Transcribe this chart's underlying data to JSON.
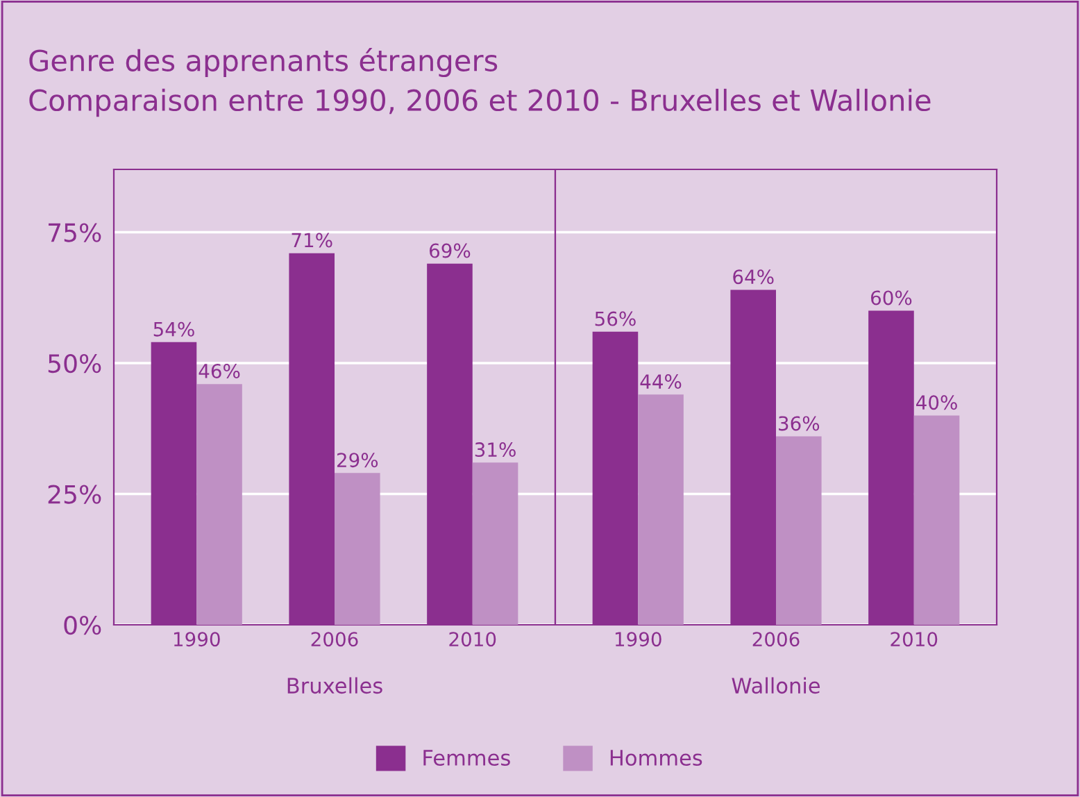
{
  "chart_data": [
    {
      "type": "bar",
      "title": "Genre des apprenants étrangers",
      "subtitle": "Comparaison entre 1990, 2006 et 2010 - Bruxelles et Wallonie",
      "xlabel": "Bruxelles",
      "categories": [
        "1990",
        "2006",
        "2010"
      ],
      "series": [
        {
          "name": "Femmes",
          "color": "#8b2f8f",
          "values": [
            54,
            71,
            69
          ],
          "value_labels": [
            "54%",
            "71%",
            "69%"
          ]
        },
        {
          "name": "Hommes",
          "color": "#bf90c4",
          "values": [
            46,
            29,
            31
          ],
          "value_labels": [
            "46%",
            "29%",
            "31%"
          ]
        }
      ],
      "ylim": [
        0,
        87
      ],
      "yticks": [
        {
          "value": 0,
          "label": "0%"
        },
        {
          "value": 25,
          "label": "25%"
        },
        {
          "value": 50,
          "label": "50%"
        },
        {
          "value": 75,
          "label": "75%"
        }
      ],
      "grid": "y",
      "legend": "bottom"
    },
    {
      "type": "bar",
      "xlabel": "Wallonie",
      "categories": [
        "1990",
        "2006",
        "2010"
      ],
      "series": [
        {
          "color": "#8b2f8f",
          "values": [
            56,
            64,
            60
          ],
          "value_labels": [
            "56%",
            "64%",
            "60%"
          ]
        },
        {
          "color": "#bf90c4",
          "values": [
            44,
            36,
            40
          ],
          "value_labels": [
            "44%",
            "36%",
            "40%"
          ]
        }
      ],
      "ylim": [
        0,
        87
      ],
      "yticks": [
        0,
        25,
        50,
        75
      ],
      "grid": "y",
      "tick_labels": "x"
    }
  ]
}
